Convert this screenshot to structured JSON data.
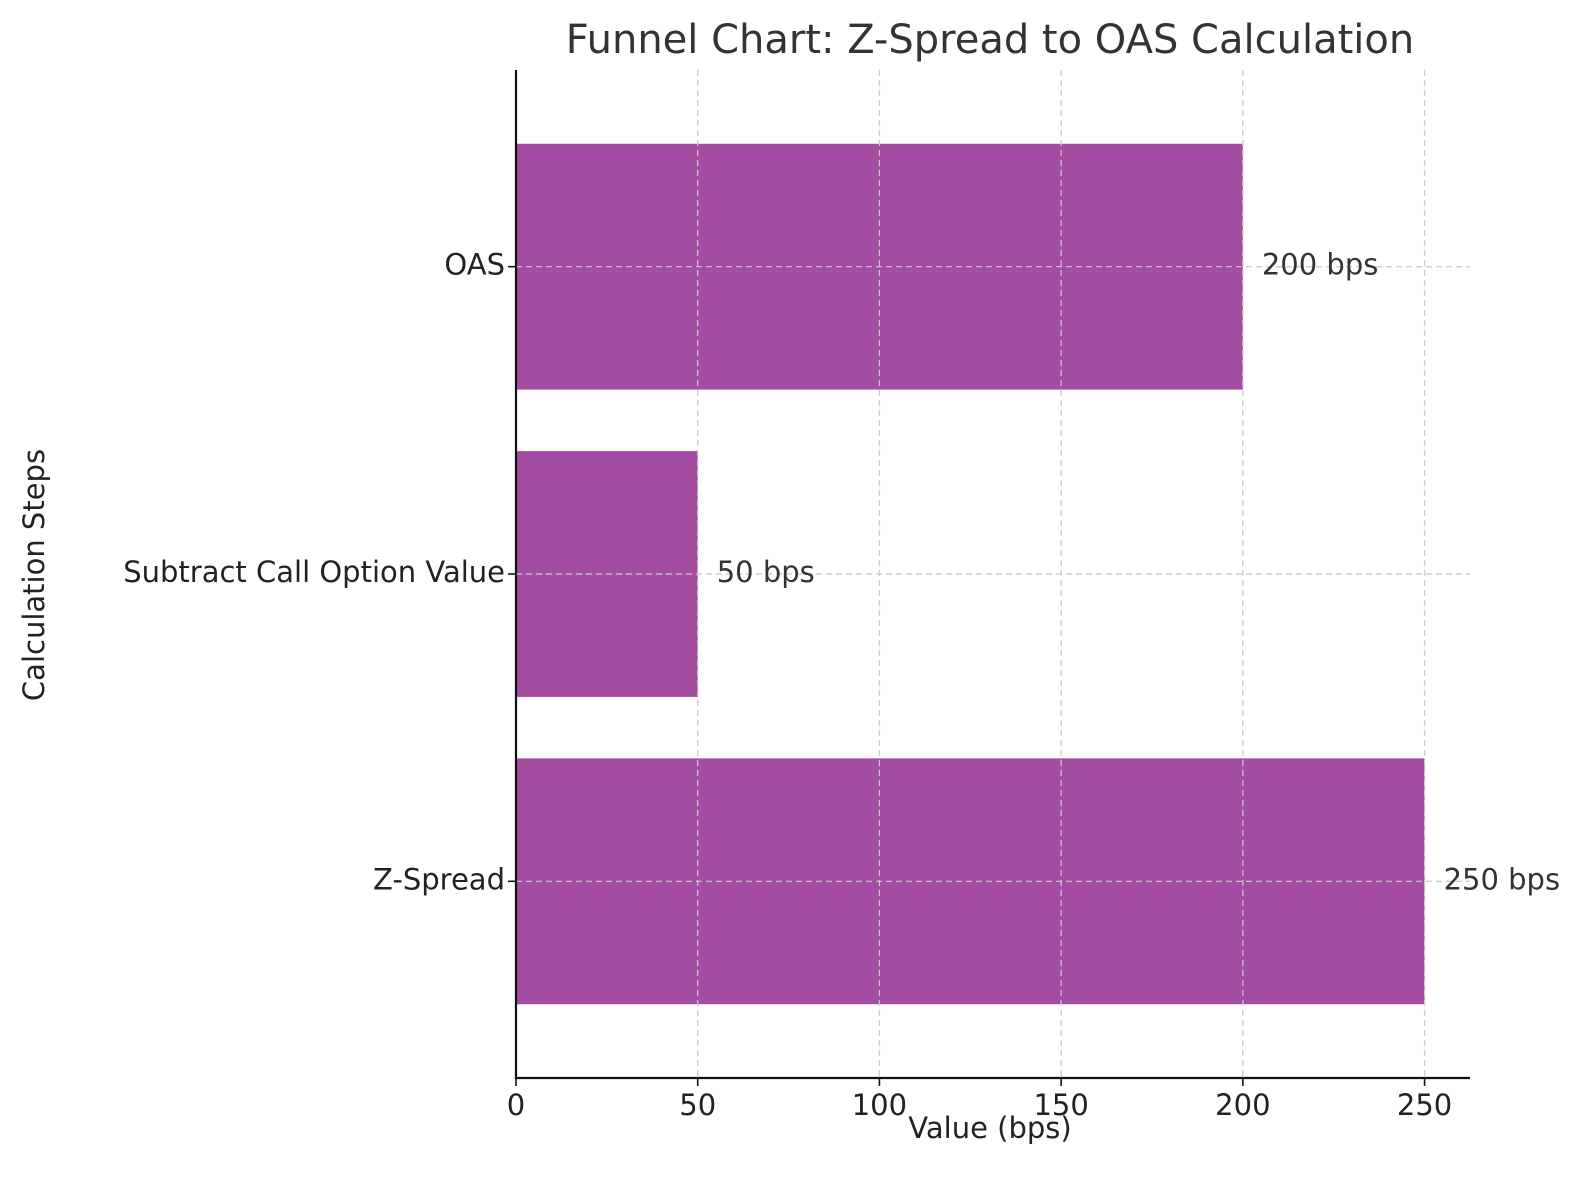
{
  "chart_data": {
    "type": "bar",
    "orientation": "horizontal",
    "title": "Funnel Chart: Z-Spread to OAS Calculation",
    "xlabel": "Value (bps)",
    "ylabel": "Calculation Steps",
    "categories": [
      "Z-Spread",
      "Subtract Call Option Value",
      "OAS"
    ],
    "values": [
      250,
      50,
      200
    ],
    "data_labels": [
      "250 bps",
      "50 bps",
      "200 bps"
    ],
    "xlim": [
      0,
      262.5
    ],
    "xticks": [
      0,
      50,
      100,
      150,
      200,
      250
    ],
    "xtick_labels": [
      "0",
      "50",
      "100",
      "150",
      "200",
      "250"
    ],
    "grid": true,
    "bar_color": "#a44ca2"
  }
}
